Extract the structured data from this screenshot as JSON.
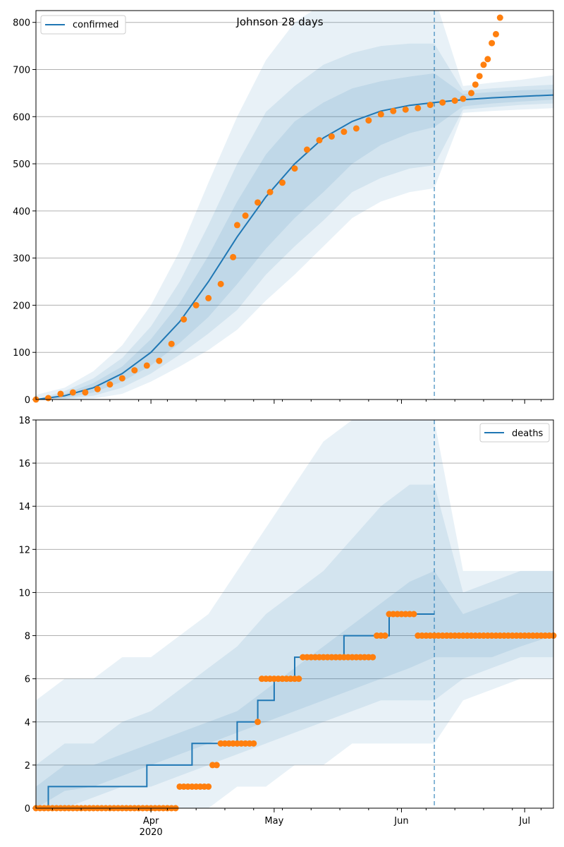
{
  "chart_data": [
    {
      "type": "line",
      "title": "Johnson 28 days",
      "legend": {
        "label": "confirmed",
        "placement": "top-left"
      },
      "xlim": [
        "2020-03-04",
        "2020-07-08"
      ],
      "ylim": [
        0,
        825
      ],
      "yticks": [
        0,
        100,
        200,
        300,
        400,
        500,
        600,
        700,
        800
      ],
      "grid": "horizontal",
      "colors": {
        "line": "#1f77b4",
        "points": "#ff7f0e",
        "band": "#1f77b4"
      },
      "forecast_start": "2020-06-09",
      "fit": {
        "x": [
          "2020-03-04",
          "2020-03-11",
          "2020-03-18",
          "2020-03-25",
          "2020-04-01",
          "2020-04-08",
          "2020-04-15",
          "2020-04-22",
          "2020-04-29",
          "2020-05-06",
          "2020-05-13",
          "2020-05-20",
          "2020-05-27",
          "2020-06-03",
          "2020-06-09",
          "2020-06-16",
          "2020-06-23",
          "2020-06-30",
          "2020-07-08"
        ],
        "y": [
          0,
          8,
          25,
          55,
          100,
          165,
          250,
          345,
          430,
          500,
          555,
          590,
          612,
          624,
          630,
          636,
          640,
          643,
          646
        ]
      },
      "bands": [
        {
          "lower": [
            0,
            3,
            15,
            38,
            72,
            120,
            175,
            245,
            320,
            385,
            440,
            500,
            540,
            565,
            578,
            622,
            628,
            632,
            636
          ],
          "upper": [
            0,
            12,
            35,
            70,
            128,
            205,
            305,
            420,
            520,
            590,
            630,
            660,
            675,
            685,
            692,
            648,
            652,
            656,
            658
          ]
        },
        {
          "lower": [
            0,
            1,
            8,
            25,
            55,
            95,
            140,
            190,
            265,
            325,
            380,
            440,
            470,
            490,
            497,
            615,
            620,
            625,
            628
          ],
          "upper": [
            0,
            18,
            45,
            88,
            155,
            250,
            370,
            500,
            610,
            665,
            710,
            735,
            750,
            755,
            755,
            655,
            660,
            664,
            668
          ]
        },
        {
          "lower": [
            0,
            0,
            2,
            12,
            38,
            70,
            105,
            148,
            210,
            265,
            325,
            385,
            420,
            440,
            448,
            608,
            612,
            615,
            618
          ],
          "upper": [
            10,
            25,
            60,
            115,
            200,
            315,
            460,
            600,
            720,
            800,
            840,
            850,
            855,
            855,
            855,
            665,
            672,
            678,
            688
          ]
        }
      ],
      "observed": {
        "x": [
          "2020-03-04",
          "2020-03-07",
          "2020-03-10",
          "2020-03-13",
          "2020-03-16",
          "2020-03-19",
          "2020-03-22",
          "2020-03-25",
          "2020-03-28",
          "2020-03-31",
          "2020-04-03",
          "2020-04-06",
          "2020-04-09",
          "2020-04-12",
          "2020-04-15",
          "2020-04-18",
          "2020-04-21",
          "2020-04-22",
          "2020-04-24",
          "2020-04-27",
          "2020-04-30",
          "2020-05-03",
          "2020-05-06",
          "2020-05-09",
          "2020-05-12",
          "2020-05-15",
          "2020-05-18",
          "2020-05-21",
          "2020-05-24",
          "2020-05-27",
          "2020-05-30",
          "2020-06-02",
          "2020-06-05",
          "2020-06-08",
          "2020-06-11",
          "2020-06-14",
          "2020-06-16",
          "2020-06-18",
          "2020-06-19",
          "2020-06-20",
          "2020-06-21",
          "2020-06-22",
          "2020-06-23",
          "2020-06-24",
          "2020-06-25"
        ],
        "y": [
          0,
          3,
          12,
          15,
          15,
          22,
          32,
          45,
          62,
          72,
          82,
          118,
          170,
          200,
          215,
          245,
          302,
          370,
          390,
          418,
          440,
          460,
          490,
          530,
          550,
          558,
          568,
          575,
          592,
          605,
          612,
          615,
          618,
          625,
          630,
          634,
          638,
          650,
          668,
          686,
          710,
          722,
          756,
          775,
          810
        ]
      }
    },
    {
      "type": "line",
      "title": "",
      "legend": {
        "label": "deaths",
        "placement": "top-right"
      },
      "xlim": [
        "2020-03-04",
        "2020-07-08"
      ],
      "ylim": [
        0,
        18
      ],
      "yticks": [
        0,
        2,
        4,
        6,
        8,
        10,
        12,
        14,
        16,
        18
      ],
      "xticks": [
        {
          "date": "2020-04-01",
          "label": "Apr",
          "sublabel": "2020"
        },
        {
          "date": "2020-05-01",
          "label": "May",
          "sublabel": ""
        },
        {
          "date": "2020-06-01",
          "label": "Jun",
          "sublabel": ""
        },
        {
          "date": "2020-07-01",
          "label": "Jul",
          "sublabel": ""
        }
      ],
      "grid": "horizontal",
      "colors": {
        "line": "#1f77b4",
        "points": "#ff7f0e",
        "band": "#1f77b4"
      },
      "forecast_start": "2020-06-09",
      "fit": {
        "x": [
          "2020-03-04",
          "2020-03-07",
          "2020-03-07",
          "2020-03-31",
          "2020-03-31",
          "2020-04-11",
          "2020-04-11",
          "2020-04-15",
          "2020-04-15",
          "2020-04-22",
          "2020-04-22",
          "2020-04-27",
          "2020-04-27",
          "2020-05-01",
          "2020-05-01",
          "2020-05-06",
          "2020-05-06",
          "2020-05-11",
          "2020-05-11",
          "2020-05-18",
          "2020-05-18",
          "2020-05-29",
          "2020-05-29",
          "2020-06-09"
        ],
        "y": [
          0,
          0,
          1,
          1,
          2,
          2,
          3,
          3,
          3,
          3,
          4,
          4,
          5,
          5,
          6,
          6,
          7,
          7,
          7,
          7,
          8,
          8,
          9,
          9
        ]
      },
      "bands": [
        {
          "lower": [
            0,
            0.8,
            1,
            1.5,
            2,
            2.5,
            3,
            3.5,
            4,
            4.5,
            5,
            5.5,
            6,
            6.5,
            7,
            7,
            7,
            7.5,
            8
          ],
          "upper": [
            1,
            2,
            2,
            2.5,
            3,
            3.5,
            4,
            4.5,
            5.5,
            6.5,
            7.5,
            8.5,
            9.5,
            10.5,
            11,
            9,
            9.5,
            10,
            10
          ]
        },
        {
          "lower": [
            0,
            0,
            0.5,
            1,
            1,
            1.5,
            2,
            2.5,
            3,
            3.5,
            4,
            4.5,
            5,
            5,
            5,
            6,
            6.5,
            7,
            7
          ],
          "upper": [
            2,
            3,
            3,
            4,
            4.5,
            5.5,
            6.5,
            7.5,
            9,
            10,
            11,
            12.5,
            14,
            15,
            15,
            10,
            10.5,
            11,
            11
          ]
        },
        {
          "lower": [
            0,
            0,
            0,
            0,
            0,
            0,
            0,
            1,
            1,
            2,
            2,
            3,
            3,
            3,
            3,
            5,
            5.5,
            6,
            6
          ],
          "upper": [
            5,
            6,
            6,
            7,
            7,
            8,
            9,
            11,
            13,
            15,
            17,
            18,
            18,
            18,
            18,
            11,
            11,
            11,
            11
          ]
        }
      ],
      "band_x": [
        "2020-03-04",
        "2020-03-11",
        "2020-03-18",
        "2020-03-25",
        "2020-04-01",
        "2020-04-08",
        "2020-04-15",
        "2020-04-22",
        "2020-04-29",
        "2020-05-06",
        "2020-05-13",
        "2020-05-20",
        "2020-05-27",
        "2020-06-03",
        "2020-06-09",
        "2020-06-16",
        "2020-06-23",
        "2020-06-30",
        "2020-07-08"
      ],
      "observed": {
        "segments": [
          {
            "start": "2020-03-04",
            "end": "2020-04-07",
            "value": 0
          },
          {
            "start": "2020-04-08",
            "end": "2020-04-15",
            "value": 1
          },
          {
            "start": "2020-04-16",
            "end": "2020-04-17",
            "value": 2
          },
          {
            "start": "2020-04-18",
            "end": "2020-04-26",
            "value": 3
          },
          {
            "start": "2020-04-27",
            "end": "2020-04-27",
            "value": 4
          },
          {
            "start": "2020-04-28",
            "end": "2020-05-07",
            "value": 6
          },
          {
            "start": "2020-05-08",
            "end": "2020-05-25",
            "value": 7
          },
          {
            "start": "2020-05-26",
            "end": "2020-05-28",
            "value": 8
          },
          {
            "start": "2020-05-29",
            "end": "2020-06-04",
            "value": 9
          },
          {
            "start": "2020-06-05",
            "end": "2020-07-08",
            "value": 8
          }
        ]
      }
    }
  ]
}
